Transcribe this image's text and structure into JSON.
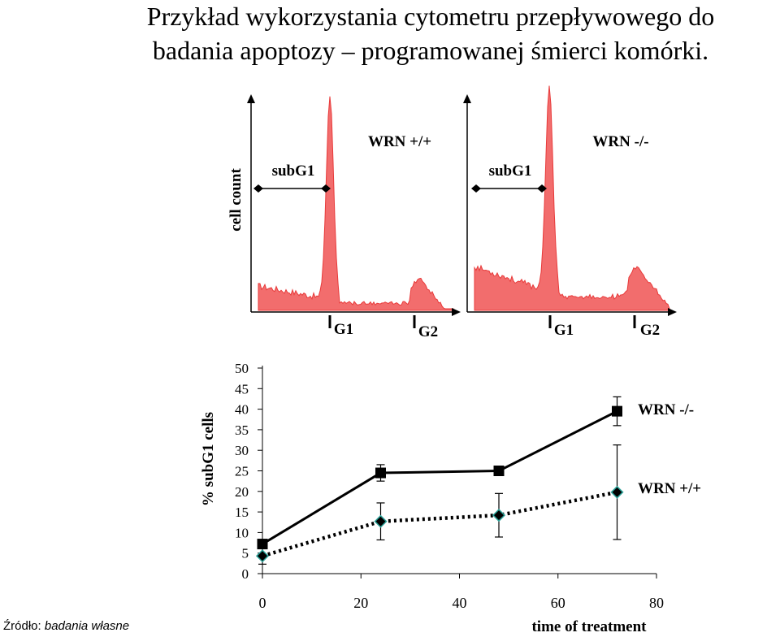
{
  "title": {
    "line1": "Przykład wykorzystania cytometru przepływowego do",
    "line2": "badania apoptozy – programowanej śmierci komórki."
  },
  "source": {
    "label": "Źródło:",
    "value": "badania własne"
  },
  "histograms": {
    "y_label": "cell count",
    "panels": [
      {
        "name": "WRN +/+",
        "region_label": "subG1",
        "g1_label": "G1",
        "g2_label": "G2"
      },
      {
        "name": "WRN -/-",
        "region_label": "subG1",
        "g1_label": "G1",
        "g2_label": "G2"
      }
    ],
    "fill_color": "#f26d6d",
    "stroke_color": "#e83a3a"
  },
  "chart_data": {
    "type": "line",
    "xlabel": "time of treatment",
    "ylabel": "% subG1 cells",
    "xlim": [
      0,
      80
    ],
    "ylim": [
      0,
      50
    ],
    "xticks": [
      0,
      20,
      40,
      60,
      80
    ],
    "yticks": [
      0,
      5,
      10,
      15,
      20,
      25,
      30,
      35,
      40,
      45,
      50
    ],
    "grid": false,
    "legend": "right, inline labels",
    "series": [
      {
        "name": "WRN -/-",
        "x": [
          0,
          24,
          48,
          72
        ],
        "y": [
          7.2,
          24.5,
          25.0,
          39.5
        ],
        "err": [
          0.5,
          2.0,
          1.0,
          3.5
        ],
        "style": "solid",
        "marker": "square",
        "color": "#000000"
      },
      {
        "name": "WRN +/+",
        "x": [
          0,
          24,
          48,
          72
        ],
        "y": [
          4.3,
          12.7,
          14.2,
          19.8
        ],
        "err": [
          2.0,
          4.5,
          5.3,
          11.5
        ],
        "style": "dotted",
        "marker": "diamond",
        "color": "#000000",
        "marker_edge": "#2aa198"
      }
    ]
  }
}
